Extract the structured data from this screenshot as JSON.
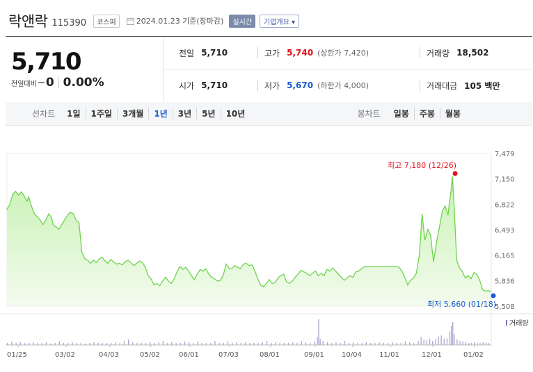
{
  "header": {
    "name": "락앤락",
    "code": "115390",
    "market": "코스피",
    "date": "2024.01.23 기준(장마감)",
    "realtime": "실시간",
    "corp_info": "기업개요 ▾"
  },
  "summary": {
    "price": "5,710",
    "change_label": "전일대비",
    "change": "0",
    "change_pct": "0.00%",
    "prev_label": "전일",
    "prev": "5,710",
    "high_label": "고가",
    "high": "5,740",
    "upper_limit": "(상한가 7,420)",
    "volume_label": "거래량",
    "volume": "18,502",
    "open_label": "시가",
    "open": "5,710",
    "low_label": "저가",
    "low": "5,670",
    "lower_limit": "(하한가 4,000)",
    "amount_label": "거래대금",
    "amount": "105 백만"
  },
  "period": {
    "title": "선차트",
    "items": [
      "1일",
      "1주일",
      "3개월",
      "1년",
      "3년",
      "5년",
      "10년"
    ],
    "active": "1년",
    "candle_title": "봉차트",
    "candle_items": [
      "일봉",
      "주봉",
      "월봉"
    ]
  },
  "chart_data": {
    "type": "area",
    "colors": {
      "line": "#6fd24e",
      "fill_top": "#c8f2b4",
      "fill_bottom": "#f3fbee",
      "max": "#e2101c",
      "min": "#1b5ad1",
      "volume": "#a8a6cf"
    },
    "y_ticks": [
      "7,479",
      "7,150",
      "6,822",
      "6,493",
      "6,165",
      "5,836",
      "5,508"
    ],
    "ylim": [
      5508,
      7479
    ],
    "x_ticks": [
      "01/25",
      "03/02",
      "04/03",
      "05/02",
      "06/01",
      "07/03",
      "08/01",
      "09/01",
      "10/04",
      "11/01",
      "12/01",
      "01/02"
    ],
    "max_label": "최고 7,180 (12/26)",
    "min_label": "최저 5,660 (01/18)",
    "volume_label": "거래량",
    "price_points": [
      [
        0,
        6760
      ],
      [
        2,
        6820
      ],
      [
        4,
        6950
      ],
      [
        6,
        6990
      ],
      [
        8,
        6940
      ],
      [
        10,
        6980
      ],
      [
        12,
        6930
      ],
      [
        14,
        6860
      ],
      [
        15,
        6920
      ],
      [
        17,
        6800
      ],
      [
        19,
        6700
      ],
      [
        21,
        6660
      ],
      [
        23,
        6620
      ],
      [
        25,
        6560
      ],
      [
        27,
        6620
      ],
      [
        29,
        6700
      ],
      [
        31,
        6650
      ],
      [
        32,
        6560
      ],
      [
        34,
        6530
      ],
      [
        36,
        6500
      ],
      [
        38,
        6560
      ],
      [
        40,
        6620
      ],
      [
        42,
        6680
      ],
      [
        44,
        6720
      ],
      [
        46,
        6700
      ],
      [
        48,
        6620
      ],
      [
        50,
        6580
      ],
      [
        52,
        6200
      ],
      [
        54,
        6120
      ],
      [
        56,
        6100
      ],
      [
        58,
        6060
      ],
      [
        60,
        6100
      ],
      [
        62,
        6070
      ],
      [
        64,
        6120
      ],
      [
        66,
        6140
      ],
      [
        68,
        6090
      ],
      [
        70,
        6060
      ],
      [
        72,
        6110
      ],
      [
        74,
        6080
      ],
      [
        76,
        6050
      ],
      [
        78,
        6060
      ],
      [
        80,
        6040
      ],
      [
        82,
        6080
      ],
      [
        84,
        6100
      ],
      [
        86,
        6070
      ],
      [
        88,
        6030
      ],
      [
        90,
        6060
      ],
      [
        92,
        6090
      ],
      [
        94,
        6070
      ],
      [
        96,
        6010
      ],
      [
        98,
        5900
      ],
      [
        100,
        5860
      ],
      [
        102,
        5780
      ],
      [
        104,
        5800
      ],
      [
        106,
        5770
      ],
      [
        108,
        5830
      ],
      [
        110,
        5880
      ],
      [
        112,
        5830
      ],
      [
        114,
        5800
      ],
      [
        116,
        5860
      ],
      [
        118,
        5950
      ],
      [
        120,
        6020
      ],
      [
        122,
        5980
      ],
      [
        124,
        6010
      ],
      [
        126,
        5960
      ],
      [
        128,
        5900
      ],
      [
        130,
        5850
      ],
      [
        132,
        5920
      ],
      [
        134,
        5980
      ],
      [
        136,
        5960
      ],
      [
        138,
        5990
      ],
      [
        140,
        5920
      ],
      [
        142,
        5880
      ],
      [
        144,
        5860
      ],
      [
        146,
        5830
      ],
      [
        148,
        5840
      ],
      [
        150,
        5900
      ],
      [
        152,
        6050
      ],
      [
        154,
        6000
      ],
      [
        156,
        5990
      ],
      [
        158,
        6030
      ],
      [
        160,
        6010
      ],
      [
        162,
        5990
      ],
      [
        164,
        6050
      ],
      [
        166,
        6060
      ],
      [
        168,
        6030
      ],
      [
        170,
        6040
      ],
      [
        172,
        5960
      ],
      [
        174,
        5860
      ],
      [
        176,
        5780
      ],
      [
        178,
        5760
      ],
      [
        180,
        5800
      ],
      [
        182,
        5850
      ],
      [
        184,
        5800
      ],
      [
        186,
        5810
      ],
      [
        188,
        5870
      ],
      [
        190,
        5900
      ],
      [
        192,
        5920
      ],
      [
        194,
        5820
      ],
      [
        196,
        5800
      ],
      [
        198,
        5830
      ],
      [
        200,
        5880
      ],
      [
        202,
        5920
      ],
      [
        204,
        5970
      ],
      [
        206,
        5950
      ],
      [
        208,
        5930
      ],
      [
        210,
        5900
      ],
      [
        212,
        5930
      ],
      [
        214,
        5960
      ],
      [
        216,
        5900
      ],
      [
        218,
        5930
      ],
      [
        220,
        5900
      ],
      [
        222,
        5980
      ],
      [
        224,
        5960
      ],
      [
        226,
        6000
      ],
      [
        228,
        5960
      ],
      [
        230,
        5920
      ],
      [
        232,
        5880
      ],
      [
        234,
        5840
      ],
      [
        236,
        5870
      ],
      [
        238,
        5900
      ],
      [
        240,
        5880
      ],
      [
        242,
        5950
      ],
      [
        244,
        5960
      ],
      [
        246,
        5990
      ],
      [
        248,
        6020
      ],
      [
        250,
        6020
      ],
      [
        252,
        6020
      ],
      [
        254,
        6020
      ],
      [
        256,
        6020
      ],
      [
        258,
        6020
      ],
      [
        260,
        6020
      ],
      [
        262,
        6020
      ],
      [
        264,
        6020
      ],
      [
        266,
        6020
      ],
      [
        268,
        6020
      ],
      [
        270,
        6020
      ],
      [
        272,
        6010
      ],
      [
        274,
        5960
      ],
      [
        276,
        5880
      ],
      [
        278,
        5780
      ],
      [
        280,
        5840
      ],
      [
        282,
        5870
      ],
      [
        284,
        5930
      ],
      [
        286,
        6150
      ],
      [
        287,
        6400
      ],
      [
        288,
        6700
      ],
      [
        289,
        6520
      ],
      [
        290,
        6360
      ],
      [
        292,
        6500
      ],
      [
        294,
        6420
      ],
      [
        295,
        6230
      ],
      [
        296,
        6080
      ],
      [
        298,
        6330
      ],
      [
        300,
        6520
      ],
      [
        302,
        6730
      ],
      [
        304,
        6800
      ],
      [
        306,
        6680
      ],
      [
        307,
        6850
      ],
      [
        308,
        6980
      ],
      [
        309,
        7180
      ],
      [
        310,
        6900
      ],
      [
        311,
        6500
      ],
      [
        312,
        6100
      ],
      [
        314,
        6000
      ],
      [
        316,
        5950
      ],
      [
        318,
        5870
      ],
      [
        320,
        5900
      ],
      [
        322,
        5860
      ],
      [
        324,
        5940
      ],
      [
        326,
        5920
      ],
      [
        328,
        5840
      ],
      [
        330,
        5720
      ],
      [
        332,
        5700
      ],
      [
        334,
        5710
      ],
      [
        336,
        5690
      ]
    ],
    "volume_bars": [
      [
        0,
        3
      ],
      [
        3,
        5
      ],
      [
        6,
        3
      ],
      [
        9,
        4
      ],
      [
        12,
        3
      ],
      [
        15,
        3
      ],
      [
        18,
        4
      ],
      [
        21,
        3
      ],
      [
        24,
        3
      ],
      [
        27,
        4
      ],
      [
        30,
        2
      ],
      [
        33,
        3
      ],
      [
        36,
        5
      ],
      [
        39,
        3
      ],
      [
        42,
        3
      ],
      [
        45,
        4
      ],
      [
        48,
        3
      ],
      [
        51,
        3
      ],
      [
        54,
        2
      ],
      [
        57,
        3
      ],
      [
        60,
        4
      ],
      [
        63,
        3
      ],
      [
        66,
        3
      ],
      [
        69,
        3
      ],
      [
        72,
        3
      ],
      [
        75,
        4
      ],
      [
        78,
        3
      ],
      [
        81,
        6
      ],
      [
        84,
        8
      ],
      [
        87,
        4
      ],
      [
        90,
        3
      ],
      [
        93,
        3
      ],
      [
        96,
        3
      ],
      [
        99,
        4
      ],
      [
        102,
        3
      ],
      [
        105,
        4
      ],
      [
        108,
        6
      ],
      [
        111,
        3
      ],
      [
        114,
        4
      ],
      [
        117,
        3
      ],
      [
        120,
        3
      ],
      [
        123,
        5
      ],
      [
        126,
        4
      ],
      [
        129,
        3
      ],
      [
        132,
        5
      ],
      [
        135,
        3
      ],
      [
        138,
        3
      ],
      [
        141,
        3
      ],
      [
        144,
        6
      ],
      [
        147,
        3
      ],
      [
        150,
        3
      ],
      [
        153,
        5
      ],
      [
        156,
        3
      ],
      [
        159,
        4
      ],
      [
        162,
        3
      ],
      [
        165,
        4
      ],
      [
        168,
        3
      ],
      [
        171,
        3
      ],
      [
        174,
        3
      ],
      [
        177,
        4
      ],
      [
        180,
        6
      ],
      [
        183,
        3
      ],
      [
        186,
        4
      ],
      [
        189,
        3
      ],
      [
        192,
        3
      ],
      [
        195,
        3
      ],
      [
        198,
        4
      ],
      [
        201,
        3
      ],
      [
        204,
        5
      ],
      [
        207,
        4
      ],
      [
        210,
        3
      ],
      [
        213,
        5
      ],
      [
        215,
        12
      ],
      [
        216,
        38
      ],
      [
        217,
        9
      ],
      [
        219,
        6
      ],
      [
        222,
        4
      ],
      [
        225,
        3
      ],
      [
        228,
        4
      ],
      [
        231,
        3
      ],
      [
        234,
        6
      ],
      [
        237,
        3
      ],
      [
        240,
        4
      ],
      [
        243,
        3
      ],
      [
        246,
        3
      ],
      [
        249,
        4
      ],
      [
        252,
        3
      ],
      [
        255,
        3
      ],
      [
        258,
        4
      ],
      [
        261,
        3
      ],
      [
        264,
        3
      ],
      [
        267,
        4
      ],
      [
        270,
        3
      ],
      [
        273,
        3
      ],
      [
        276,
        5
      ],
      [
        279,
        4
      ],
      [
        282,
        3
      ],
      [
        285,
        6
      ],
      [
        287,
        12
      ],
      [
        289,
        8
      ],
      [
        291,
        7
      ],
      [
        293,
        9
      ],
      [
        295,
        6
      ],
      [
        297,
        8
      ],
      [
        299,
        12
      ],
      [
        301,
        14
      ],
      [
        303,
        9
      ],
      [
        305,
        10
      ],
      [
        307,
        20
      ],
      [
        308,
        28
      ],
      [
        309,
        34
      ],
      [
        310,
        16
      ],
      [
        312,
        8
      ],
      [
        314,
        6
      ],
      [
        316,
        5
      ],
      [
        318,
        4
      ],
      [
        320,
        3
      ],
      [
        322,
        3
      ],
      [
        324,
        4
      ],
      [
        326,
        3
      ],
      [
        328,
        3
      ],
      [
        330,
        4
      ],
      [
        332,
        3
      ],
      [
        334,
        3
      ]
    ]
  }
}
